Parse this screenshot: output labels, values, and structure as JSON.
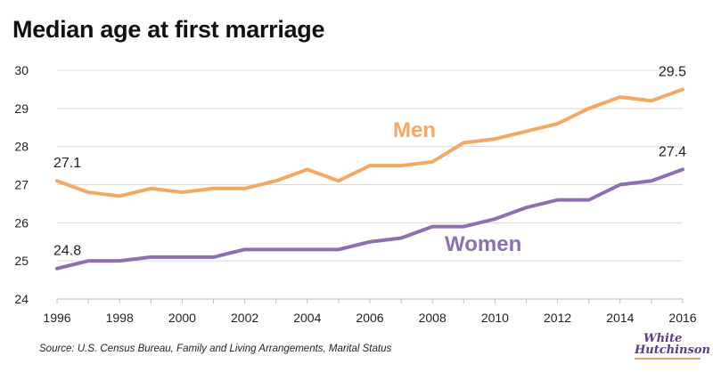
{
  "title": "Median age at first marriage",
  "source": "Source: U.S. Census Bureau, Family and Living Arrangements, Marital Status",
  "logo": {
    "line1": "White",
    "line2": "Hutchinson"
  },
  "chart_data": {
    "type": "line",
    "title": "Median age at first marriage",
    "xlabel": "",
    "ylabel": "",
    "x": [
      1996,
      1997,
      1998,
      1999,
      2000,
      2001,
      2002,
      2003,
      2004,
      2005,
      2006,
      2007,
      2008,
      2009,
      2010,
      2011,
      2012,
      2013,
      2014,
      2015,
      2016
    ],
    "xticks": [
      "1996",
      "1998",
      "2000",
      "2002",
      "2004",
      "2006",
      "2008",
      "2010",
      "2012",
      "2014",
      "2016"
    ],
    "yticks": [
      "24",
      "25",
      "26",
      "27",
      "28",
      "29",
      "30"
    ],
    "xlim": [
      1996,
      2016
    ],
    "ylim": [
      24,
      30
    ],
    "grid": "horizontal",
    "legend": "inline labels",
    "series": [
      {
        "name": "Men",
        "color": "#f4a866",
        "values": [
          27.1,
          26.8,
          26.7,
          26.9,
          26.8,
          26.9,
          26.9,
          27.1,
          27.4,
          27.1,
          27.5,
          27.5,
          27.6,
          28.1,
          28.2,
          28.4,
          28.6,
          29.0,
          29.3,
          29.2,
          29.5
        ],
        "annotations": [
          {
            "label": "27.1",
            "x": 1996,
            "y": 27.1
          },
          {
            "label": "29.5",
            "x": 2016,
            "y": 29.5
          }
        ]
      },
      {
        "name": "Women",
        "color": "#8e70b2",
        "values": [
          24.8,
          25.0,
          25.0,
          25.1,
          25.1,
          25.1,
          25.3,
          25.3,
          25.3,
          25.3,
          25.5,
          25.6,
          25.9,
          25.9,
          26.1,
          26.4,
          26.6,
          26.6,
          27.0,
          27.1,
          27.4
        ],
        "annotations": [
          {
            "label": "24.8",
            "x": 1996,
            "y": 24.8
          },
          {
            "label": "27.4",
            "x": 2016,
            "y": 27.4
          }
        ]
      }
    ]
  }
}
